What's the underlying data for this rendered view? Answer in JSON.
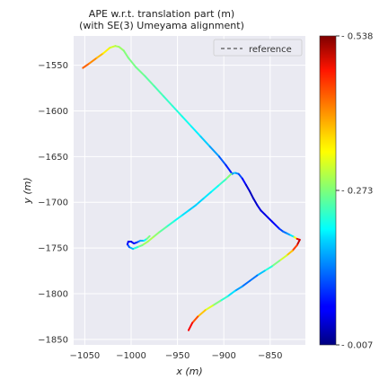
{
  "chart_data": {
    "type": "line",
    "title": "APE w.r.t. translation part (m)",
    "subtitle": "(with SE(3) Umeyama alignment)",
    "xlabel": "x (m)",
    "ylabel": "y (m)",
    "xlim": [
      -1062,
      -812
    ],
    "ylim": [
      -1856,
      -1518
    ],
    "xticks": [
      -1050,
      -1000,
      -950,
      -900,
      -850
    ],
    "xtick_labels": [
      "−1050",
      "−1000",
      "−950",
      "−900",
      "−850"
    ],
    "yticks": [
      -1550,
      -1600,
      -1650,
      -1700,
      -1750,
      -1800,
      -1850
    ],
    "ytick_labels": [
      "−1550",
      "−1600",
      "−1650",
      "−1700",
      "−1750",
      "−1800",
      "−1850"
    ],
    "grid": true,
    "legend_position": "top-right",
    "legend": [
      {
        "label": "reference",
        "style": "dashed",
        "color": "#555555"
      }
    ],
    "colorbar": {
      "min": 0.007,
      "max": 0.538,
      "tick_labels": [
        "0.538",
        "0.273",
        "0.007"
      ],
      "colormap": "jet"
    },
    "series": [
      {
        "x": [
          -1052,
          -1045,
          -1037,
          -1030,
          -1023,
          -1017,
          -1013,
          -1008,
          -1003,
          -995,
          -985,
          -975,
          -965,
          -955,
          -945,
          -935,
          -925,
          -915,
          -905,
          -898,
          -893,
          -891,
          -889,
          -887,
          -884,
          -880,
          -876,
          -872,
          -868,
          -864,
          -860,
          -856,
          -852,
          -848,
          -844,
          -840,
          -836,
          -832,
          -828,
          -824,
          -821,
          -818,
          -821,
          -826,
          -832,
          -840,
          -848,
          -856,
          -864,
          -872,
          -880,
          -888,
          -896,
          -904,
          -912,
          -920,
          -928,
          -934,
          -938
        ],
        "y": [
          -1553,
          -1548,
          -1542,
          -1537,
          -1531,
          -1529,
          -1530,
          -1534,
          -1542,
          -1552,
          -1562,
          -1573,
          -1584,
          -1595,
          -1606,
          -1617,
          -1628,
          -1639,
          -1650,
          -1659,
          -1666,
          -1669,
          -1668,
          -1668,
          -1669,
          -1674,
          -1681,
          -1688,
          -1696,
          -1703,
          -1709,
          -1713,
          -1717,
          -1721,
          -1725,
          -1729,
          -1732,
          -1734,
          -1736,
          -1738,
          -1740,
          -1741,
          -1747,
          -1753,
          -1758,
          -1764,
          -1770,
          -1775,
          -1780,
          -1786,
          -1792,
          -1797,
          -1803,
          -1808,
          -1813,
          -1818,
          -1825,
          -1832,
          -1840
        ],
        "error": [
          0.43,
          0.41,
          0.39,
          0.36,
          0.33,
          0.3,
          0.29,
          0.28,
          0.27,
          0.27,
          0.26,
          0.25,
          0.24,
          0.23,
          0.22,
          0.21,
          0.19,
          0.17,
          0.14,
          0.1,
          0.08,
          0.09,
          0.2,
          0.17,
          0.13,
          0.09,
          0.06,
          0.04,
          0.04,
          0.05,
          0.06,
          0.06,
          0.06,
          0.07,
          0.07,
          0.09,
          0.12,
          0.14,
          0.17,
          0.22,
          0.44,
          0.52,
          0.48,
          0.4,
          0.34,
          0.29,
          0.25,
          0.2,
          0.15,
          0.12,
          0.14,
          0.17,
          0.21,
          0.25,
          0.3,
          0.34,
          0.4,
          0.46,
          0.49
        ]
      },
      {
        "x": [
          -892,
          -898,
          -906,
          -914,
          -922,
          -930,
          -938,
          -946,
          -954,
          -962,
          -970,
          -976,
          -982,
          -988,
          -993,
          -998,
          -1002,
          -1004,
          -1003,
          -1000,
          -997,
          -994,
          -992,
          -990,
          -986,
          -983,
          -980
        ],
        "y": [
          -1669,
          -1675,
          -1682,
          -1689,
          -1696,
          -1703,
          -1709,
          -1715,
          -1721,
          -1727,
          -1733,
          -1738,
          -1743,
          -1747,
          -1749,
          -1751,
          -1749,
          -1746,
          -1743,
          -1743,
          -1745,
          -1744,
          -1743,
          -1742,
          -1742,
          -1740,
          -1737
        ],
        "error": [
          0.3,
          0.25,
          0.22,
          0.2,
          0.19,
          0.18,
          0.18,
          0.2,
          0.22,
          0.24,
          0.27,
          0.29,
          0.3,
          0.28,
          0.25,
          0.2,
          0.14,
          0.09,
          0.07,
          0.06,
          0.07,
          0.09,
          0.12,
          0.15,
          0.18,
          0.24,
          0.3
        ]
      }
    ]
  }
}
